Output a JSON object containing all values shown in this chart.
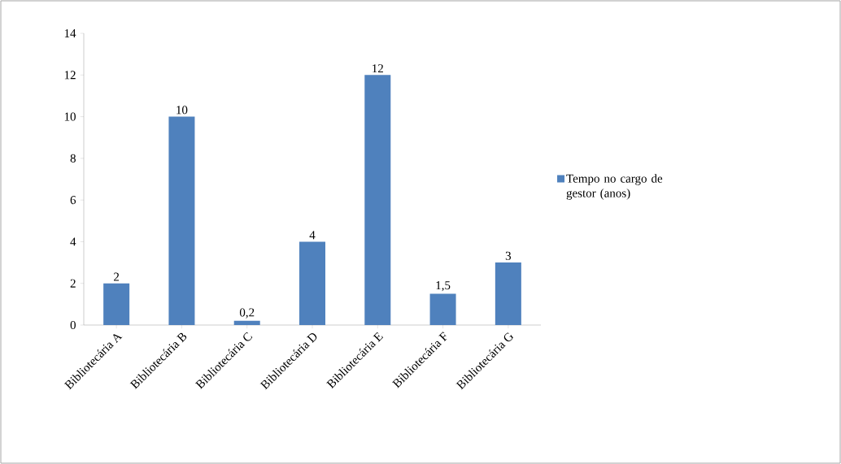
{
  "chart_data": {
    "type": "bar",
    "categories": [
      "Bibliotecária A",
      "Bibliotecária B",
      "Bibliotecária C",
      "Bibliotecária D",
      "Bibliotecária E",
      "Bibliotecária F",
      "Bibliotecária G"
    ],
    "series": [
      {
        "name": "Tempo no cargo de gestor (anos)",
        "color": "#4f81bd",
        "values": [
          2,
          10,
          0.2,
          4,
          12,
          1.5,
          3
        ],
        "value_labels": [
          "2",
          "10",
          "0,2",
          "4",
          "12",
          "1,5",
          "3"
        ]
      }
    ],
    "ylim": [
      0,
      14
    ],
    "yticks": [
      0,
      2,
      4,
      6,
      8,
      10,
      12,
      14
    ],
    "legend": "right"
  }
}
